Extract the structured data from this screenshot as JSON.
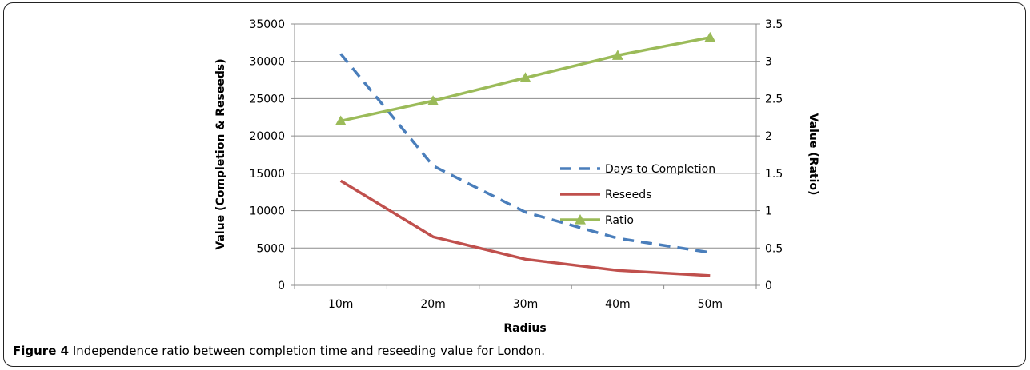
{
  "chart_data": {
    "type": "line",
    "categories": [
      "10m",
      "20m",
      "30m",
      "40m",
      "50m"
    ],
    "xlabel": "Radius",
    "ylabel": "Value (Completion & Reseeds)",
    "y2label": "Value (Ratio)",
    "ylim": [
      0,
      35000
    ],
    "y2lim": [
      0,
      3.5
    ],
    "yticks": [
      "0",
      "5000",
      "10000",
      "15000",
      "20000",
      "25000",
      "30000",
      "35000"
    ],
    "y2ticks": [
      "0",
      "0.5",
      "1",
      "1.5",
      "2",
      "2.5",
      "3",
      "3.5"
    ],
    "grid": "horizontal",
    "legend_position": "inside-right",
    "series": [
      {
        "name": "Days to Completion",
        "axis": "left",
        "style": "dashed",
        "color": "#4a7ebb",
        "values": [
          31000,
          16000,
          9800,
          6300,
          4400
        ]
      },
      {
        "name": "Reseeds",
        "axis": "left",
        "style": "solid",
        "color": "#c0504d",
        "values": [
          14000,
          6500,
          3500,
          2000,
          1300
        ]
      },
      {
        "name": "Ratio",
        "axis": "right",
        "style": "solid-triangle",
        "color": "#9bbb59",
        "values": [
          2.2,
          2.47,
          2.78,
          3.08,
          3.32
        ]
      }
    ]
  },
  "caption": {
    "label": "Figure 4",
    "text": " Independence ratio between completion time and reseeding value for London."
  }
}
